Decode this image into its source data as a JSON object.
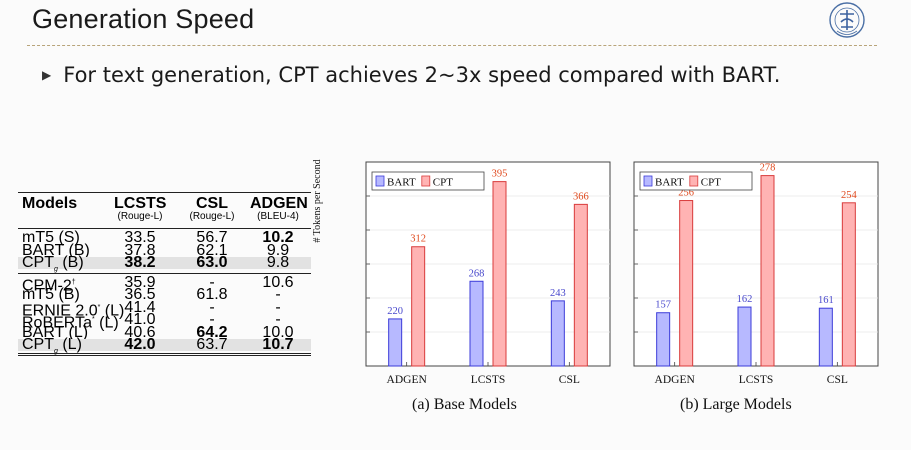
{
  "slide": {
    "title": "Generation Speed",
    "bullet": "For text generation, CPT achieves 2~3x speed compared with BART."
  },
  "table": {
    "headers": [
      "Models",
      "LCSTS",
      "CSL",
      "ADGEN"
    ],
    "subheaders": [
      "",
      "(Rouge-L)",
      "(Rouge-L)",
      "(BLEU-4)"
    ],
    "groups": [
      [
        {
          "model": "mT5 (S)",
          "lcsts": "33.5",
          "csl": "56.7",
          "adgen": "10.2",
          "bold": [
            3
          ]
        },
        {
          "model": "BART (B)",
          "lcsts": "37.8",
          "csl": "62.1",
          "adgen": "9.9",
          "bold": []
        },
        {
          "model": "CPTg (B)",
          "lcsts": "38.2",
          "csl": "63.0",
          "adgen": "9.8",
          "bold": [
            1,
            2
          ],
          "highlight": true
        }
      ],
      [
        {
          "model": "CPM-2†",
          "lcsts": "35.9",
          "csl": "-",
          "adgen": "10.6",
          "bold": []
        },
        {
          "model": "mT5 (B)",
          "lcsts": "36.5",
          "csl": "61.8",
          "adgen": "-",
          "bold": []
        },
        {
          "model": "ERNIE 2.0* (L)",
          "lcsts": "41.4",
          "csl": "-",
          "adgen": "-",
          "bold": []
        },
        {
          "model": "RoBERTa* (L)",
          "lcsts": "41.0",
          "csl": "-",
          "adgen": "-",
          "bold": []
        },
        {
          "model": "BART (L)",
          "lcsts": "40.6",
          "csl": "64.2",
          "adgen": "10.0",
          "bold": [
            2
          ]
        },
        {
          "model": "CPTg (L)",
          "lcsts": "42.0",
          "csl": "63.7",
          "adgen": "10.7",
          "bold": [
            1,
            3
          ],
          "highlight": true
        }
      ]
    ]
  },
  "chart_data": [
    {
      "type": "bar",
      "caption": "(a) Base Models",
      "ylabel": "# Tokens per Second",
      "categories": [
        "ADGEN",
        "LCSTS",
        "CSL"
      ],
      "series": [
        {
          "name": "BART",
          "values": [
            220,
            268,
            243
          ],
          "color": "#b7b9ff"
        },
        {
          "name": "CPT",
          "values": [
            312,
            395,
            366
          ],
          "color": "#ffb3b3"
        }
      ],
      "ylim": [
        160,
        420
      ],
      "legend": "top-left",
      "grid": true
    },
    {
      "type": "bar",
      "caption": "(b) Large Models",
      "ylabel": "",
      "categories": [
        "ADGEN",
        "LCSTS",
        "CSL"
      ],
      "series": [
        {
          "name": "BART",
          "values": [
            157,
            162,
            161
          ],
          "color": "#b7b9ff"
        },
        {
          "name": "CPT",
          "values": [
            256,
            278,
            254
          ],
          "color": "#ffb3b3"
        }
      ],
      "ylim": [
        110,
        290
      ],
      "legend": "top-left",
      "grid": true
    }
  ],
  "colors": {
    "bart_stroke": "#3b3bd9",
    "cpt_stroke": "#d93b3b",
    "bart_label": "#4848cc",
    "cpt_label": "#e04a1e"
  }
}
